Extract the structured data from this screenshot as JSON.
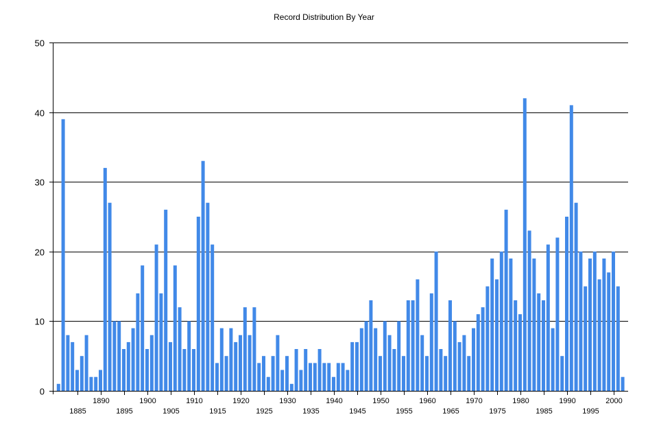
{
  "chart_data": {
    "type": "bar",
    "title": "Record Distribution By Year",
    "xlabel": "",
    "ylabel": "",
    "ylim": [
      0,
      50
    ],
    "yticks": [
      0,
      10,
      20,
      30,
      40,
      50
    ],
    "xticks": [
      1885,
      1890,
      1895,
      1900,
      1905,
      1910,
      1915,
      1920,
      1925,
      1930,
      1935,
      1940,
      1945,
      1950,
      1955,
      1960,
      1965,
      1970,
      1975,
      1980,
      1985,
      1990,
      1995,
      2000
    ],
    "grid": true,
    "legend": null,
    "bar_color": "#4189E8",
    "categories": [
      1881,
      1882,
      1883,
      1884,
      1885,
      1886,
      1887,
      1888,
      1889,
      1890,
      1891,
      1892,
      1893,
      1894,
      1895,
      1896,
      1897,
      1898,
      1899,
      1900,
      1901,
      1902,
      1903,
      1904,
      1905,
      1906,
      1907,
      1908,
      1909,
      1910,
      1911,
      1912,
      1913,
      1914,
      1915,
      1916,
      1917,
      1918,
      1919,
      1920,
      1921,
      1922,
      1923,
      1924,
      1925,
      1926,
      1927,
      1928,
      1929,
      1930,
      1931,
      1932,
      1933,
      1934,
      1935,
      1936,
      1937,
      1938,
      1939,
      1940,
      1941,
      1942,
      1943,
      1944,
      1945,
      1946,
      1947,
      1948,
      1949,
      1950,
      1951,
      1952,
      1953,
      1954,
      1955,
      1956,
      1957,
      1958,
      1959,
      1960,
      1961,
      1962,
      1963,
      1964,
      1965,
      1966,
      1967,
      1968,
      1969,
      1970,
      1971,
      1972,
      1973,
      1974,
      1975,
      1976,
      1977,
      1978,
      1979,
      1980,
      1981,
      1982,
      1983,
      1984,
      1985,
      1986,
      1987,
      1988,
      1989,
      1990,
      1991,
      1992,
      1993,
      1994,
      1995,
      1996,
      1997,
      1998,
      1999,
      2000,
      2001,
      2002
    ],
    "values": [
      1,
      39,
      8,
      7,
      3,
      5,
      8,
      2,
      2,
      3,
      32,
      27,
      10,
      10,
      6,
      7,
      9,
      14,
      18,
      6,
      8,
      21,
      14,
      26,
      7,
      18,
      12,
      6,
      10,
      6,
      25,
      33,
      27,
      21,
      4,
      9,
      5,
      9,
      7,
      8,
      12,
      8,
      12,
      4,
      5,
      2,
      5,
      8,
      3,
      5,
      1,
      6,
      3,
      6,
      4,
      4,
      6,
      4,
      4,
      2,
      4,
      4,
      3,
      7,
      7,
      9,
      10,
      13,
      9,
      5,
      10,
      8,
      6,
      10,
      5,
      13,
      13,
      16,
      8,
      5,
      14,
      20,
      6,
      5,
      13,
      10,
      7,
      8,
      5,
      9,
      11,
      12,
      15,
      19,
      16,
      20,
      26,
      19,
      13,
      11,
      42,
      23,
      19,
      14,
      13,
      21,
      9,
      22,
      5,
      25,
      41,
      27,
      20,
      15,
      19,
      20,
      16,
      19,
      17,
      20,
      15,
      2
    ]
  }
}
